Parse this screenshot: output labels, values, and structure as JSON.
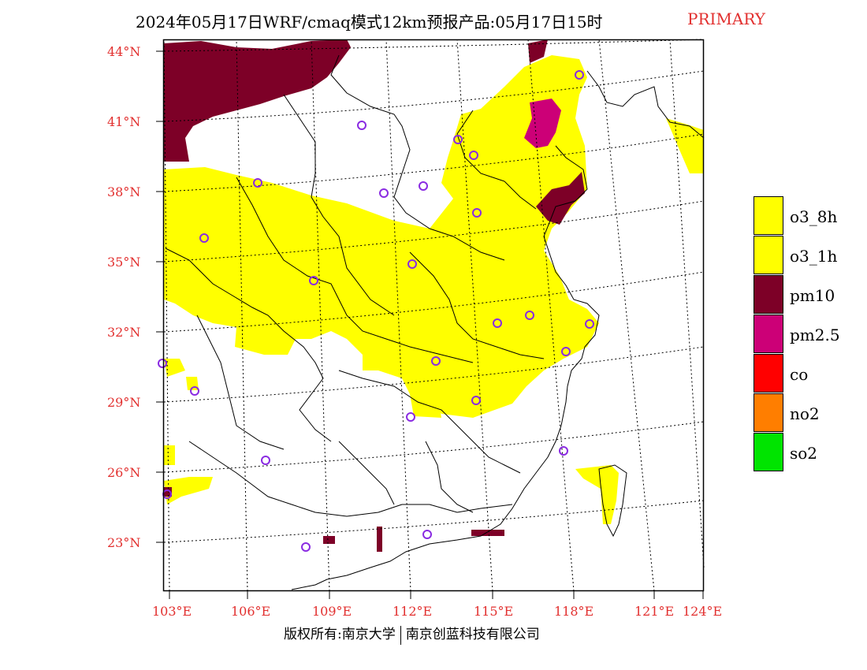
{
  "title": {
    "main": "2024年05月17日WRF/cmaq模式12km预报产品:05月17日15时",
    "tag": "PRIMARY"
  },
  "axes": {
    "lat_labels": [
      "44°N",
      "41°N",
      "38°N",
      "35°N",
      "32°N",
      "29°N",
      "26°N",
      "23°N"
    ],
    "lon_labels": [
      "103°E",
      "106°E",
      "109°E",
      "112°E",
      "115°E",
      "118°E",
      "121°E",
      "124°E"
    ]
  },
  "legend": [
    {
      "label": "o3_8h",
      "color": "#ffff00"
    },
    {
      "label": "o3_1h",
      "color": "#ffff00"
    },
    {
      "label": "pm10",
      "color": "#7d0027"
    },
    {
      "label": "pm2.5",
      "color": "#cc0077"
    },
    {
      "label": "co",
      "color": "#ff0000"
    },
    {
      "label": "no2",
      "color": "#ff7e00"
    },
    {
      "label": "so2",
      "color": "#00e400"
    }
  ],
  "colors": {
    "accent": "#e2302f",
    "o3": "#ffff00",
    "pm10": "#7d0027",
    "pm25": "#cc0077",
    "station": "#8a2be2"
  },
  "copyright": {
    "left": "版权所有:南京大学",
    "right": "南京创蓝科技有限公司"
  }
}
